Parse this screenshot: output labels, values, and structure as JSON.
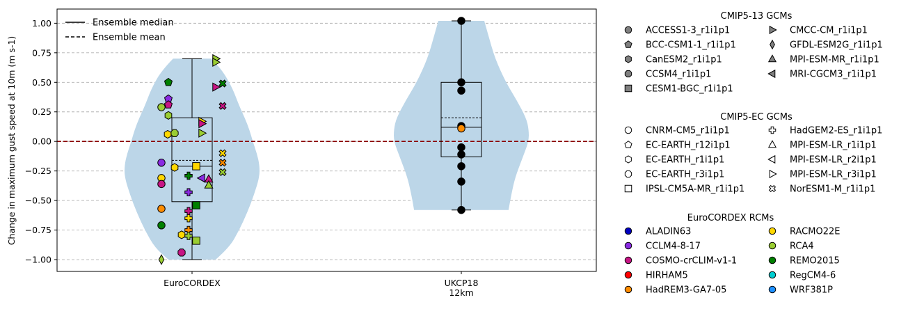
{
  "chart_data": {
    "type": "violin",
    "ylabel": "Change in maximum gust speed at 10m (m s-1)",
    "ylim": [
      -1.1,
      1.12
    ],
    "yticks": [
      -1.0,
      -0.75,
      -0.5,
      -0.25,
      0.0,
      0.25,
      0.5,
      0.75,
      1.0
    ],
    "ytick_labels": [
      "−1.00",
      "−0.75",
      "−0.50",
      "−0.25",
      "0.00",
      "0.25",
      "0.50",
      "0.75",
      "1.00"
    ],
    "grid": "y-dashed",
    "zero_line_color": "#8b0000",
    "violin_color": "#bcd6e8",
    "legend_lines": [
      {
        "label": "Ensemble median",
        "style": "solid"
      },
      {
        "label": "Ensemble mean",
        "style": "dashed"
      }
    ],
    "groups": [
      {
        "label_lines": [
          "EuroCORDEX"
        ],
        "violin": {
          "y": [
            -1.0,
            -0.9,
            -0.75,
            -0.6,
            -0.45,
            -0.3,
            -0.2,
            -0.1,
            0.0,
            0.1,
            0.2,
            0.3,
            0.45,
            0.6,
            0.7
          ],
          "w": [
            0.35,
            0.55,
            0.7,
            0.82,
            0.92,
            1.0,
            1.0,
            0.96,
            0.9,
            0.85,
            0.78,
            0.7,
            0.6,
            0.45,
            0.28
          ]
        },
        "box": {
          "min": -1.0,
          "q1": -0.51,
          "median": -0.21,
          "mean": -0.16,
          "q3": 0.2,
          "max": 0.7
        },
        "points": [
          {
            "y": 0.5,
            "gcm": "BCC-CSM1-1_r1i1p1",
            "rcm": "REMO2015",
            "dx": -34
          },
          {
            "y": 0.36,
            "gcm": "BCC-CSM1-1_r1i1p1",
            "rcm": "CCLM4-8-17",
            "dx": -34
          },
          {
            "y": 0.31,
            "gcm": "BCC-CSM1-1_r1i1p1",
            "rcm": "COSMO-crCLIM-v1-1",
            "dx": -34
          },
          {
            "y": 0.29,
            "gcm": "ACCESS1-3_r1i1p1",
            "rcm": "RCA4",
            "dx": -44
          },
          {
            "y": 0.22,
            "gcm": "CanESM2_r1i1p1",
            "rcm": "RCA4",
            "dx": -34
          },
          {
            "y": 0.07,
            "gcm": "CCSM4_r1i1p1",
            "rcm": "RCA4",
            "dx": -25
          },
          {
            "y": 0.06,
            "gcm": "EC-EARTH_r1i1p1",
            "rcm": "RACMO22E",
            "dx": -35
          },
          {
            "y": -0.18,
            "gcm": "ACCESS1-3_r1i1p1",
            "rcm": "CCLM4-8-17",
            "dx": -44
          },
          {
            "y": -0.22,
            "gcm": "EC-EARTH_r1i1p1",
            "rcm": "RACMO22E",
            "dx": -25
          },
          {
            "y": -0.21,
            "gcm": "CESM1-BGC_r1i1p1",
            "rcm": "RACMO22E",
            "dx": 6
          },
          {
            "y": -0.29,
            "gcm": "HadGEM2-ES_r1i1p1",
            "rcm": "REMO2015",
            "dx": -5
          },
          {
            "y": -0.31,
            "gcm": "ACCESS1-3_r1i1p1",
            "rcm": "RACMO22E",
            "dx": -44
          },
          {
            "y": -0.36,
            "gcm": "ACCESS1-3_r1i1p1",
            "rcm": "COSMO-crCLIM-v1-1",
            "dx": -44
          },
          {
            "y": -0.43,
            "gcm": "HadGEM2-ES_r1i1p1",
            "rcm": "CCLM4-8-17",
            "dx": -5
          },
          {
            "y": -0.54,
            "gcm": "CESM1-BGC_r1i1p1",
            "rcm": "REMO2015",
            "dx": 6
          },
          {
            "y": -0.57,
            "gcm": "ACCESS1-3_r1i1p1",
            "rcm": "HadREM3-GA7-05",
            "dx": -44
          },
          {
            "y": -0.59,
            "gcm": "HadGEM2-ES_r1i1p1",
            "rcm": "COSMO-crCLIM-v1-1",
            "dx": -5
          },
          {
            "y": -0.65,
            "gcm": "HadGEM2-ES_r1i1p1",
            "rcm": "RACMO22E",
            "dx": -5
          },
          {
            "y": -0.71,
            "gcm": "ACCESS1-3_r1i1p1",
            "rcm": "REMO2015",
            "dx": -44
          },
          {
            "y": -0.75,
            "gcm": "HadGEM2-ES_r1i1p1",
            "rcm": "HadREM3-GA7-05",
            "dx": -5
          },
          {
            "y": -0.79,
            "gcm": "EC-EARTH_r1i1p1",
            "rcm": "RACMO22E",
            "dx": -15
          },
          {
            "y": -0.8,
            "gcm": "HadGEM2-ES_r1i1p1",
            "rcm": "RCA4",
            "dx": -5
          },
          {
            "y": -0.84,
            "gcm": "CESM1-BGC_r1i1p1",
            "rcm": "RCA4",
            "dx": 6
          },
          {
            "y": -0.94,
            "gcm": "CCSM4_r1i1p1",
            "rcm": "COSMO-crCLIM-v1-1",
            "dx": -15
          },
          {
            "y": -1.0,
            "gcm": "GFDL-ESM2G_r1i1p1",
            "rcm": "RCA4",
            "dx": -44
          },
          {
            "y": 0.7,
            "gcm": "CMCC-CM_r1i1p1",
            "rcm": "RCA4",
            "dx": 34
          },
          {
            "y": 0.67,
            "gcm": "CMCC-CM_r1i1p1",
            "rcm": "RCA4",
            "dx": 34
          },
          {
            "y": 0.49,
            "gcm": "NorESM1-M_r1i1p1",
            "rcm": "REMO2015",
            "dx": 44
          },
          {
            "y": 0.46,
            "gcm": "CMCC-CM_r1i1p1",
            "rcm": "COSMO-crCLIM-v1-1",
            "dx": 34
          },
          {
            "y": 0.3,
            "gcm": "NorESM1-M_r1i1p1",
            "rcm": "COSMO-crCLIM-v1-1",
            "dx": 44
          },
          {
            "y": 0.17,
            "gcm": "MPI-ESM-LR_r3i1p1",
            "rcm": "RACMO22E",
            "dx": 14
          },
          {
            "y": 0.15,
            "gcm": "MPI-ESM-LR_r3i1p1",
            "rcm": "COSMO-crCLIM-v1-1",
            "dx": 14
          },
          {
            "y": 0.07,
            "gcm": "MPI-ESM-LR_r3i1p1",
            "rcm": "RCA4",
            "dx": 14
          },
          {
            "y": -0.1,
            "gcm": "NorESM1-M_r1i1p1",
            "rcm": "RACMO22E",
            "dx": 44
          },
          {
            "y": -0.18,
            "gcm": "NorESM1-M_r1i1p1",
            "rcm": "HadREM3-GA7-05",
            "dx": 44
          },
          {
            "y": -0.26,
            "gcm": "NorESM1-M_r1i1p1",
            "rcm": "RCA4",
            "dx": 44
          },
          {
            "y": -0.31,
            "gcm": "MPI-ESM-LR_r2i1p1",
            "rcm": "CCLM4-8-17",
            "dx": 14
          },
          {
            "y": -0.32,
            "gcm": "MPI-ESM-MR_r1i1p1",
            "rcm": "COSMO-crCLIM-v1-1",
            "dx": 24
          },
          {
            "y": -0.37,
            "gcm": "MPI-ESM-MR_r1i1p1",
            "rcm": "RCA4",
            "dx": 24
          }
        ]
      },
      {
        "label_lines": [
          "UKCP18",
          "12km"
        ],
        "violin": {
          "y": [
            -0.58,
            -0.45,
            -0.3,
            -0.15,
            0.0,
            0.1,
            0.2,
            0.35,
            0.5,
            0.7,
            0.9,
            1.02
          ],
          "w": [
            0.7,
            0.74,
            0.8,
            0.9,
            1.0,
            1.0,
            0.96,
            0.82,
            0.66,
            0.5,
            0.4,
            0.34
          ]
        },
        "box": {
          "min": -0.58,
          "q1": -0.13,
          "median": 0.12,
          "mean": 0.2,
          "q3": 0.5,
          "max": 1.02
        },
        "points": [
          {
            "y": 1.02,
            "gcm": "ACCESS1-3_r1i1p1",
            "rcm": "black"
          },
          {
            "y": 0.5,
            "gcm": "ACCESS1-3_r1i1p1",
            "rcm": "black"
          },
          {
            "y": 0.43,
            "gcm": "ACCESS1-3_r1i1p1",
            "rcm": "black"
          },
          {
            "y": 0.13,
            "gcm": "ACCESS1-3_r1i1p1",
            "rcm": "black"
          },
          {
            "y": 0.11,
            "gcm": "ACCESS1-3_r1i1p1",
            "rcm": "HadREM3-GA7-05"
          },
          {
            "y": -0.05,
            "gcm": "ACCESS1-3_r1i1p1",
            "rcm": "black"
          },
          {
            "y": -0.11,
            "gcm": "ACCESS1-3_r1i1p1",
            "rcm": "black"
          },
          {
            "y": -0.21,
            "gcm": "ACCESS1-3_r1i1p1",
            "rcm": "black"
          },
          {
            "y": -0.34,
            "gcm": "ACCESS1-3_r1i1p1",
            "rcm": "black"
          },
          {
            "y": -0.58,
            "gcm": "ACCESS1-3_r1i1p1",
            "rcm": "black"
          }
        ]
      }
    ]
  },
  "legend_cmip5_13": {
    "title": "CMIP5-13 GCMs",
    "items": [
      {
        "label": "ACCESS1-3_r1i1p1",
        "marker": "circle"
      },
      {
        "label": "BCC-CSM1-1_r1i1p1",
        "marker": "pentagon"
      },
      {
        "label": "CanESM2_r1i1p1",
        "marker": "hexagon"
      },
      {
        "label": "CCSM4_r1i1p1",
        "marker": "octagon"
      },
      {
        "label": "CESM1-BGC_r1i1p1",
        "marker": "square"
      },
      {
        "label": "CMCC-CM_r1i1p1",
        "marker": "tri-right"
      },
      {
        "label": "GFDL-ESM2G_r1i1p1",
        "marker": "thin-diamond"
      },
      {
        "label": "MPI-ESM-MR_r1i1p1",
        "marker": "tri-up"
      },
      {
        "label": "MRI-CGCM3_r1i1p1",
        "marker": "tri-left"
      }
    ]
  },
  "legend_cmip5_ec": {
    "title": "CMIP5-EC GCMs",
    "items": [
      {
        "label": "CNRM-CM5_r1i1p1",
        "marker": "circle"
      },
      {
        "label": "EC-EARTH_r12i1p1",
        "marker": "pentagon"
      },
      {
        "label": "EC-EARTH_r1i1p1",
        "marker": "hexagon"
      },
      {
        "label": "EC-EARTH_r3i1p1",
        "marker": "octagon"
      },
      {
        "label": "IPSL-CM5A-MR_r1i1p1",
        "marker": "square"
      },
      {
        "label": "HadGEM2-ES_r1i1p1",
        "marker": "plus"
      },
      {
        "label": "MPI-ESM-LR_r1i1p1",
        "marker": "tri-up"
      },
      {
        "label": "MPI-ESM-LR_r2i1p1",
        "marker": "tri-left"
      },
      {
        "label": "MPI-ESM-LR_r3i1p1",
        "marker": "tri-right"
      },
      {
        "label": "NorESM1-M_r1i1p1",
        "marker": "cross"
      }
    ]
  },
  "legend_rcms": {
    "title": "EuroCORDEX RCMs",
    "items": [
      {
        "label": "ALADIN63",
        "color": "#0000c0"
      },
      {
        "label": "CCLM4-8-17",
        "color": "#8a2be2"
      },
      {
        "label": "COSMO-crCLIM-v1-1",
        "color": "#c71585"
      },
      {
        "label": "HIRHAM5",
        "color": "#ff0000"
      },
      {
        "label": "HadREM3-GA7-05",
        "color": "#ff8c00"
      },
      {
        "label": "RACMO22E",
        "color": "#ffd700"
      },
      {
        "label": "RCA4",
        "color": "#9acd32"
      },
      {
        "label": "REMO2015",
        "color": "#008000"
      },
      {
        "label": "RegCM4-6",
        "color": "#00ced1"
      },
      {
        "label": "WRF381P",
        "color": "#1e90ff"
      }
    ]
  },
  "legend_gcm_marker_color": "#808080"
}
